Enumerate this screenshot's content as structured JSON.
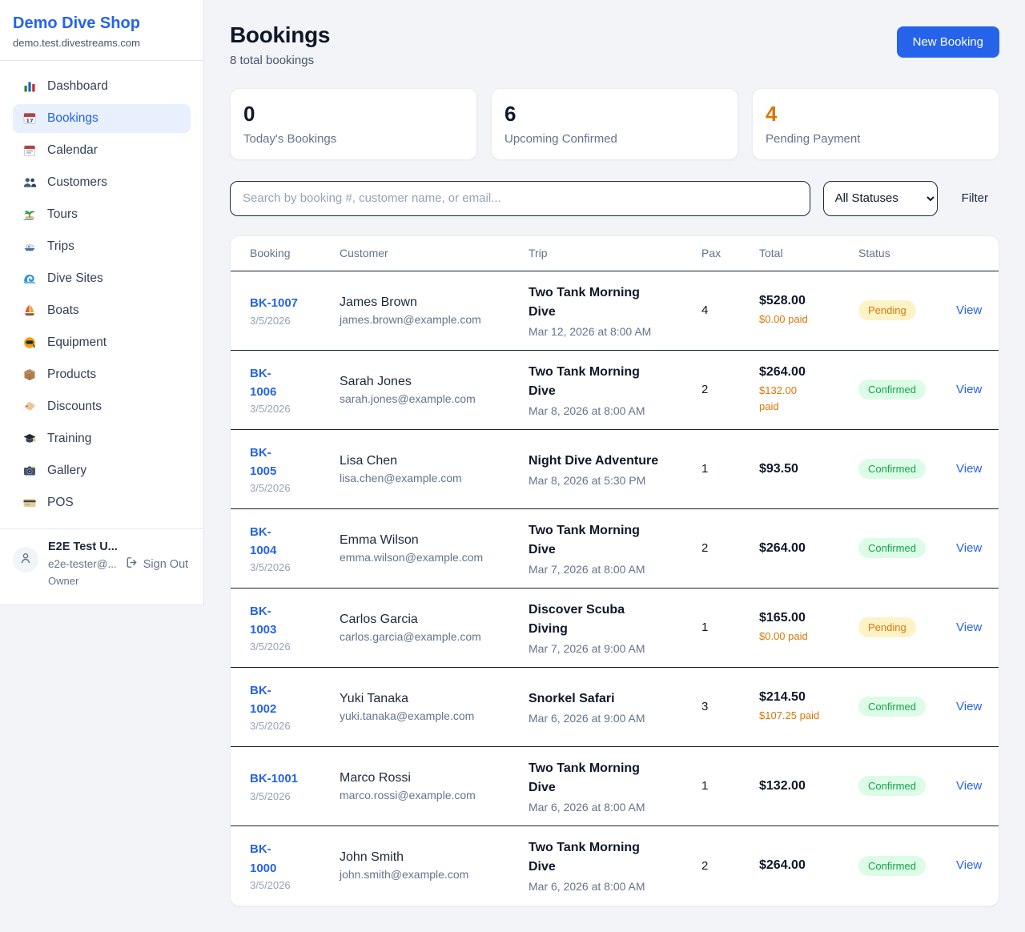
{
  "sidebar": {
    "brand": "Demo Dive Shop",
    "domain": "demo.test.divestreams.com",
    "items": [
      {
        "label": "Dashboard",
        "icon": "bar-chart",
        "active": false
      },
      {
        "label": "Bookings",
        "icon": "calendar-date",
        "active": true
      },
      {
        "label": "Calendar",
        "icon": "calendar",
        "active": false
      },
      {
        "label": "Customers",
        "icon": "people",
        "active": false
      },
      {
        "label": "Tours",
        "icon": "island",
        "active": false
      },
      {
        "label": "Trips",
        "icon": "motor-boat",
        "active": false
      },
      {
        "label": "Dive Sites",
        "icon": "wave",
        "active": false
      },
      {
        "label": "Boats",
        "icon": "sailboat",
        "active": false
      },
      {
        "label": "Equipment",
        "icon": "dive-mask",
        "active": false
      },
      {
        "label": "Products",
        "icon": "package",
        "active": false
      },
      {
        "label": "Discounts",
        "icon": "tag",
        "active": false
      },
      {
        "label": "Training",
        "icon": "graduation-cap",
        "active": false
      },
      {
        "label": "Gallery",
        "icon": "camera",
        "active": false
      },
      {
        "label": "POS",
        "icon": "credit-card",
        "active": false
      }
    ],
    "user": {
      "name": "E2E Test U...",
      "email": "e2e-tester@...",
      "role": "Owner",
      "signout_label": "Sign Out"
    }
  },
  "header": {
    "title": "Bookings",
    "subtitle": "8 total bookings",
    "new_booking_label": "New Booking"
  },
  "stats": [
    {
      "value": "0",
      "label": "Today's Bookings",
      "color": "#0f172a"
    },
    {
      "value": "6",
      "label": "Upcoming Confirmed",
      "color": "#0f172a"
    },
    {
      "value": "4",
      "label": "Pending Payment",
      "color": "#d97706"
    }
  ],
  "filters": {
    "search_placeholder": "Search by booking #, customer name, or email...",
    "status_selected": "All Statuses",
    "filter_label": "Filter"
  },
  "table": {
    "columns": [
      "Booking",
      "Customer",
      "Trip",
      "Pax",
      "Total",
      "Status"
    ],
    "view_label": "View",
    "rows": [
      {
        "id": "BK-1007",
        "date": "3/5/2026",
        "customer_name": "James Brown",
        "customer_email": "james.brown@example.com",
        "trip_name": [
          "Two Tank Morning",
          "Dive"
        ],
        "trip_datetime": "Mar 12, 2026 at 8:00 AM",
        "pax": "4",
        "total": "$528.00",
        "paid": "$0.00 paid",
        "status": "Pending"
      },
      {
        "id": [
          "BK-",
          "1006"
        ],
        "date": "3/5/2026",
        "customer_name": "Sarah Jones",
        "customer_email": "sarah.jones@example.com",
        "trip_name": [
          "Two Tank Morning",
          "Dive"
        ],
        "trip_datetime": "Mar 8, 2026 at 8:00 AM",
        "pax": "2",
        "total": "$264.00",
        "paid": [
          "$132.00",
          "paid"
        ],
        "status": "Confirmed"
      },
      {
        "id": [
          "BK-",
          "1005"
        ],
        "date": "3/5/2026",
        "customer_name": "Lisa Chen",
        "customer_email": "lisa.chen@example.com",
        "trip_name": "Night Dive Adventure",
        "trip_datetime": "Mar 8, 2026 at 5:30 PM",
        "pax": "1",
        "total": "$93.50",
        "paid": null,
        "status": "Confirmed"
      },
      {
        "id": [
          "BK-",
          "1004"
        ],
        "date": "3/5/2026",
        "customer_name": "Emma Wilson",
        "customer_email": "emma.wilson@example.com",
        "trip_name": [
          "Two Tank Morning",
          "Dive"
        ],
        "trip_datetime": "Mar 7, 2026 at 8:00 AM",
        "pax": "2",
        "total": "$264.00",
        "paid": null,
        "status": "Confirmed"
      },
      {
        "id": [
          "BK-",
          "1003"
        ],
        "date": "3/5/2026",
        "customer_name": "Carlos Garcia",
        "customer_email": "carlos.garcia@example.com",
        "trip_name": [
          "Discover Scuba",
          "Diving"
        ],
        "trip_datetime": "Mar 7, 2026 at 9:00 AM",
        "pax": "1",
        "total": "$165.00",
        "paid": "$0.00 paid",
        "status": "Pending"
      },
      {
        "id": [
          "BK-",
          "1002"
        ],
        "date": "3/5/2026",
        "customer_name": "Yuki Tanaka",
        "customer_email": "yuki.tanaka@example.com",
        "trip_name": "Snorkel Safari",
        "trip_datetime": "Mar 6, 2026 at 9:00 AM",
        "pax": "3",
        "total": "$214.50",
        "paid": "$107.25 paid",
        "status": "Confirmed"
      },
      {
        "id": "BK-1001",
        "date": "3/5/2026",
        "customer_name": "Marco Rossi",
        "customer_email": "marco.rossi@example.com",
        "trip_name": [
          "Two Tank Morning",
          "Dive"
        ],
        "trip_datetime": "Mar 6, 2026 at 8:00 AM",
        "pax": "1",
        "total": "$132.00",
        "paid": null,
        "status": "Confirmed"
      },
      {
        "id": [
          "BK-",
          "1000"
        ],
        "date": "3/5/2026",
        "customer_name": "John Smith",
        "customer_email": "john.smith@example.com",
        "trip_name": [
          "Two Tank Morning",
          "Dive"
        ],
        "trip_datetime": "Mar 6, 2026 at 8:00 AM",
        "pax": "2",
        "total": "$264.00",
        "paid": null,
        "status": "Confirmed"
      }
    ]
  },
  "colors": {
    "accent": "#2563eb",
    "pending_text": "#d97706",
    "pending_bg": "#fef3c7",
    "confirmed_text": "#16a34a",
    "confirmed_bg": "#dcfce7",
    "paid_text": "#d97706"
  }
}
